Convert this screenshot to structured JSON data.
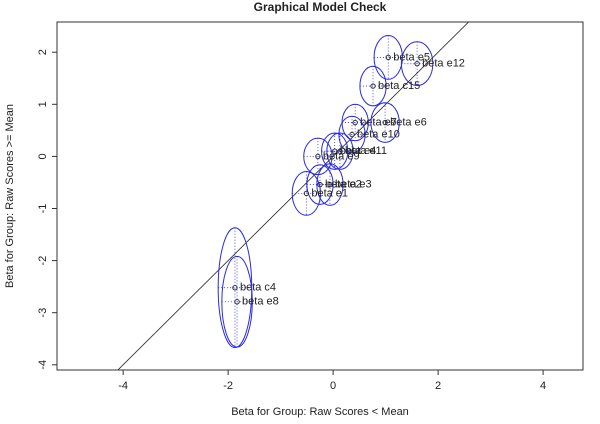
{
  "chart_data": {
    "type": "scatter",
    "title": "Graphical Model Check",
    "x_label": "Beta for Group: Raw Scores < Mean",
    "y_label": "Beta for Group: Raw Scores >= Mean",
    "labels": [
      "beta e5",
      "beta e12",
      "beta c15",
      "beta e7",
      "beta e6",
      "beta e10",
      "beta e11",
      "beta e4",
      "beta e9",
      "beta e3",
      "beta e2",
      "beta e1",
      "beta c4",
      "beta e8"
    ],
    "x": [
      1.05,
      1.6,
      0.76,
      0.42,
      0.99,
      0.36,
      0.13,
      0.03,
      -0.29,
      -0.06,
      -0.25,
      -0.51,
      -1.87,
      -1.83
    ],
    "y": [
      1.9,
      1.78,
      1.35,
      0.65,
      0.65,
      0.42,
      0.1,
      0.1,
      0,
      -0.54,
      -0.54,
      -0.71,
      -2.52,
      -2.79
    ],
    "x_err": [
      0.27,
      0.3,
      0.25,
      0.25,
      0.27,
      0.25,
      0.25,
      0.25,
      0.27,
      0.25,
      0.25,
      0.27,
      0.32,
      0.29
    ],
    "y_err": [
      0.42,
      0.42,
      0.38,
      0.35,
      0.38,
      0.35,
      0.35,
      0.35,
      0.35,
      0.4,
      0.38,
      0.42,
      1.15,
      0.87
    ],
    "color": "#2a2ae0",
    "point_color": "#333333",
    "identity_line": true,
    "xlim": [
      -5.26,
      4.76
    ],
    "ylim": [
      -4.1,
      2.58
    ],
    "xticks": [
      -4,
      -2,
      0,
      2,
      4
    ],
    "yticks": [
      -4,
      -3,
      -2,
      -1,
      0,
      1,
      2
    ]
  }
}
